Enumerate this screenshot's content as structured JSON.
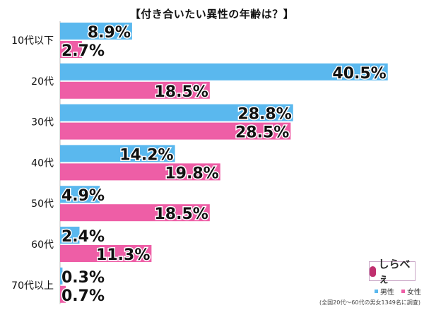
{
  "chart_data": {
    "type": "bar",
    "orientation": "horizontal",
    "title": "【付き合いたい異性の年齢は？】",
    "categories": [
      "10代以下",
      "20代",
      "30代",
      "40代",
      "50代",
      "60代",
      "70代以上"
    ],
    "series": [
      {
        "name": "男性",
        "color": "#5ab8ee",
        "values": [
          8.9,
          40.5,
          28.8,
          14.2,
          4.9,
          2.4,
          0.3
        ],
        "labels": [
          "8.9%",
          "40.5%",
          "28.8%",
          "14.2%",
          "4.9%",
          "2.4%",
          "0.3%"
        ]
      },
      {
        "name": "女性",
        "color": "#ee5ea6",
        "values": [
          2.7,
          18.5,
          28.5,
          19.8,
          18.5,
          11.3,
          0.7
        ],
        "labels": [
          "2.7%",
          "18.5%",
          "28.5%",
          "19.8%",
          "18.5%",
          "11.3%",
          "0.7%"
        ]
      }
    ],
    "legend_position": "bottom-right",
    "grid": false
  },
  "branding": {
    "logo_text": "しらべぇ",
    "footnote": "(全国20代〜60代の男女1349名に調査)"
  }
}
